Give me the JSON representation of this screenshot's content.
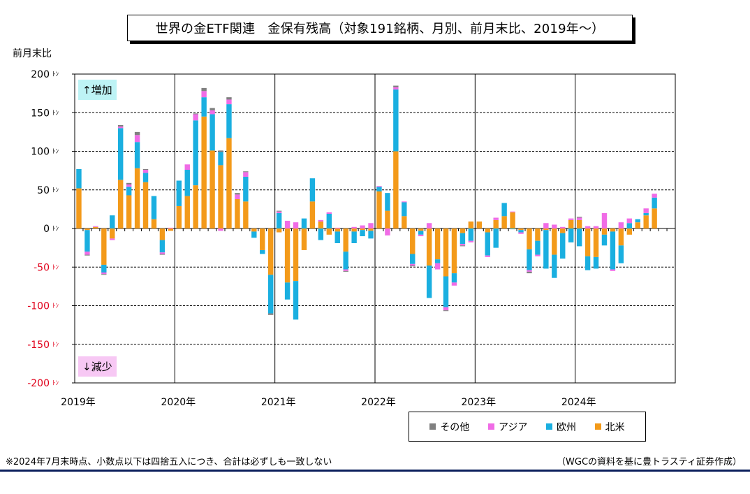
{
  "chart_data": {
    "type": "bar",
    "stacked": true,
    "title": "世界の金ETF関連　金保有残高（対象191銘柄、月別、前月末比、2019年～）",
    "ylabel": "前月末比",
    "unit": "トン",
    "ylim": [
      -200,
      200
    ],
    "yticks": [
      200,
      150,
      100,
      50,
      0,
      -50,
      -100,
      -150,
      -200
    ],
    "ytick_labels": [
      "200",
      "150",
      "100",
      "50",
      "0",
      "-50",
      "-100",
      "-150",
      "-200"
    ],
    "x_year_labels": [
      "2019年",
      "2020年",
      "2021年",
      "2022年",
      "2023年",
      "2024年"
    ],
    "months_total": 72,
    "grid": true,
    "legend_position": "bottom-right",
    "annotation_up": "↑増加",
    "annotation_down": "↓減少",
    "series": [
      {
        "name": "北米",
        "color": "#f39a1a",
        "values": [
          52,
          -2,
          2,
          -47,
          -13,
          63,
          43,
          78,
          60,
          12,
          -15,
          -3,
          29,
          42,
          56,
          145,
          101,
          82,
          117,
          38,
          35,
          -4,
          -28,
          -60,
          -5,
          -70,
          -68,
          -28,
          35,
          9,
          -8,
          -4,
          -30,
          -4,
          -2,
          -3,
          48,
          23,
          100,
          16,
          -33,
          -3,
          -48,
          -40,
          -62,
          -58,
          -6,
          9,
          9,
          -5,
          11,
          16,
          21,
          -2,
          -27,
          -16,
          -2,
          -34,
          -6,
          11,
          11,
          -36,
          -37,
          -8,
          -4,
          -22,
          -8,
          8,
          17,
          26
        ]
      },
      {
        "name": "欧州",
        "color": "#1aafe0",
        "values": [
          25,
          -28,
          0,
          -10,
          17,
          67,
          11,
          34,
          12,
          30,
          -16,
          0,
          33,
          34,
          84,
          25,
          47,
          17,
          44,
          0,
          32,
          -8,
          -5,
          -50,
          20,
          -22,
          -50,
          13,
          30,
          -15,
          19,
          -15,
          -23,
          -15,
          -8,
          -10,
          6,
          23,
          80,
          18,
          -13,
          -5,
          -42,
          -5,
          -40,
          -12,
          -14,
          -16,
          0,
          -30,
          -25,
          17,
          -1,
          -3,
          -27,
          -18,
          -50,
          -30,
          -33,
          -18,
          -23,
          -18,
          -15,
          -14,
          -49,
          -23,
          7,
          4,
          3,
          14
        ]
      },
      {
        "name": "アジア",
        "color": "#f06ce6",
        "values": [
          0,
          -4,
          1,
          -2,
          -2,
          2,
          3,
          9,
          4,
          0,
          -2,
          1,
          0,
          7,
          8,
          8,
          5,
          -3,
          6,
          6,
          6,
          0,
          0,
          0,
          2,
          10,
          8,
          0,
          0,
          2,
          2,
          1,
          -2,
          2,
          4,
          7,
          1,
          -9,
          3,
          1,
          -2,
          -2,
          7,
          -8,
          -4,
          -4,
          -2,
          -2,
          0,
          -2,
          3,
          0,
          1,
          -2,
          -2,
          -2,
          7,
          5,
          2,
          2,
          3,
          3,
          3,
          20,
          -2,
          8,
          6,
          0,
          6,
          5
        ]
      },
      {
        "name": "その他",
        "color": "#808080",
        "values": [
          0,
          -1,
          0,
          -1,
          0,
          2,
          2,
          4,
          1,
          0,
          -1,
          0,
          0,
          0,
          1,
          4,
          3,
          2,
          3,
          2,
          1,
          0,
          0,
          -2,
          1,
          0,
          0,
          0,
          0,
          0,
          0,
          0,
          -1,
          0,
          0,
          0,
          0,
          0,
          2,
          0,
          -1,
          0,
          0,
          0,
          -1,
          0,
          -1,
          0,
          0,
          0,
          0,
          0,
          0,
          0,
          -2,
          0,
          0,
          0,
          0,
          0,
          1,
          0,
          0,
          0,
          0,
          0,
          0,
          0,
          0,
          0
        ]
      }
    ]
  },
  "legend": [
    {
      "label": "その他",
      "color": "#808080"
    },
    {
      "label": "アジア",
      "color": "#f06ce6"
    },
    {
      "label": "欧州",
      "color": "#1aafe0"
    },
    {
      "label": "北米",
      "color": "#f39a1a"
    }
  ],
  "footnote_left": "※2024年7月末時点、小数点以下は四捨五入につき、合計は必ずしも一致しない",
  "footnote_right": "（WGCの資料を基に豊トラスティ証券作成）"
}
